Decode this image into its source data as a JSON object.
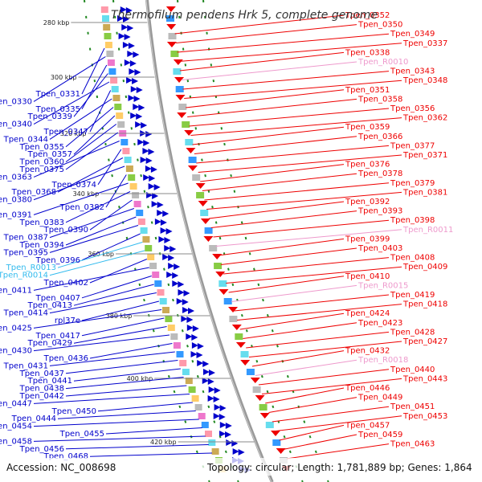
{
  "title": "Thermofilum pendens Hrk 5, complete genome",
  "accession": "Accession: NC_008698",
  "summary": "Topology: circular; Length: 1,781,889 bp; Genes: 1,864",
  "colors": {
    "forward": "#0000cc",
    "reverse": "#ee0000",
    "rna_forward": "#33bbee",
    "rna_reverse": "#ee99cc",
    "backbone": "#999999",
    "tick": "#228822"
  },
  "kbp_ticks": [
    "280 kbp",
    "300 kbp",
    "320 kbp",
    "340 kbp",
    "360 kbp",
    "380 kbp",
    "400 kbp",
    "420 kbp"
  ],
  "left_labels": [
    {
      "text": "Tpen_0331",
      "type": "cds"
    },
    {
      "text": "Tpen_0330",
      "type": "cds"
    },
    {
      "text": "Tpen_0335",
      "type": "cds"
    },
    {
      "text": "Tpen_0339",
      "type": "cds"
    },
    {
      "text": "Tpen_0340",
      "type": "cds"
    },
    {
      "text": "Tpen_0347",
      "type": "cds"
    },
    {
      "text": "Tpen_0344",
      "type": "cds"
    },
    {
      "text": "Tpen_0355",
      "type": "cds"
    },
    {
      "text": "Tpen_0357",
      "type": "cds"
    },
    {
      "text": "Tpen_0360",
      "type": "cds"
    },
    {
      "text": "Tpen_0375",
      "type": "cds"
    },
    {
      "text": "Tpen_0363",
      "type": "cds"
    },
    {
      "text": "Tpen_0374",
      "type": "cds"
    },
    {
      "text": "Tpen_0368",
      "type": "cds"
    },
    {
      "text": "Tpen_0380",
      "type": "cds"
    },
    {
      "text": "Tpen_0382",
      "type": "cds"
    },
    {
      "text": "Tpen_0391",
      "type": "cds"
    },
    {
      "text": "Tpen_0383",
      "type": "cds"
    },
    {
      "text": "Tpen_0390",
      "type": "cds"
    },
    {
      "text": "Tpen_0387",
      "type": "cds"
    },
    {
      "text": "Tpen_0394",
      "type": "cds"
    },
    {
      "text": "Tpen_0395",
      "type": "cds"
    },
    {
      "text": "Tpen_0396",
      "type": "cds"
    },
    {
      "text": "Tpen_R0013",
      "type": "rna"
    },
    {
      "text": "Tpen_R0014",
      "type": "rna"
    },
    {
      "text": "Tpen_0402",
      "type": "cds"
    },
    {
      "text": "Tpen_0411",
      "type": "cds"
    },
    {
      "text": "Tpen_0407",
      "type": "cds"
    },
    {
      "text": "Tpen_0413",
      "type": "cds"
    },
    {
      "text": "Tpen_0414",
      "type": "cds"
    },
    {
      "text": "rpl37e",
      "type": "cds"
    },
    {
      "text": "Tpen_0425",
      "type": "cds"
    },
    {
      "text": "Tpen_0417",
      "type": "cds"
    },
    {
      "text": "Tpen_0429",
      "type": "cds"
    },
    {
      "text": "Tpen_0430",
      "type": "cds"
    },
    {
      "text": "Tpen_0436",
      "type": "cds"
    },
    {
      "text": "Tpen_0431",
      "type": "cds"
    },
    {
      "text": "Tpen_0437",
      "type": "cds"
    },
    {
      "text": "Tpen_0441",
      "type": "cds"
    },
    {
      "text": "Tpen_0438",
      "type": "cds"
    },
    {
      "text": "Tpen_0442",
      "type": "cds"
    },
    {
      "text": "Tpen_0447",
      "type": "cds"
    },
    {
      "text": "Tpen_0450",
      "type": "cds"
    },
    {
      "text": "Tpen_0444",
      "type": "cds"
    },
    {
      "text": "Tpen_0454",
      "type": "cds"
    },
    {
      "text": "Tpen_0455",
      "type": "cds"
    },
    {
      "text": "Tpen_0458",
      "type": "cds"
    },
    {
      "text": "Tpen_0456",
      "type": "cds"
    },
    {
      "text": "Tpen_0468",
      "type": "cds"
    }
  ],
  "right_labels": [
    {
      "text": "Tpen_0352",
      "type": "cds"
    },
    {
      "text": "Tpen_0350",
      "type": "cds"
    },
    {
      "text": "Tpen_0349",
      "type": "cds"
    },
    {
      "text": "Tpen_0337",
      "type": "cds"
    },
    {
      "text": "Tpen_0338",
      "type": "cds"
    },
    {
      "text": "Tpen_R0010",
      "type": "rna"
    },
    {
      "text": "Tpen_0343",
      "type": "cds"
    },
    {
      "text": "Tpen_0348",
      "type": "cds"
    },
    {
      "text": "Tpen_0351",
      "type": "cds"
    },
    {
      "text": "Tpen_0358",
      "type": "cds"
    },
    {
      "text": "Tpen_0356",
      "type": "cds"
    },
    {
      "text": "Tpen_0362",
      "type": "cds"
    },
    {
      "text": "Tpen_0359",
      "type": "cds"
    },
    {
      "text": "Tpen_0366",
      "type": "cds"
    },
    {
      "text": "Tpen_0377",
      "type": "cds"
    },
    {
      "text": "Tpen_0371",
      "type": "cds"
    },
    {
      "text": "Tpen_0376",
      "type": "cds"
    },
    {
      "text": "Tpen_0378",
      "type": "cds"
    },
    {
      "text": "Tpen_0379",
      "type": "cds"
    },
    {
      "text": "Tpen_0381",
      "type": "cds"
    },
    {
      "text": "Tpen_0392",
      "type": "cds"
    },
    {
      "text": "Tpen_0393",
      "type": "cds"
    },
    {
      "text": "Tpen_0398",
      "type": "cds"
    },
    {
      "text": "Tpen_R0011",
      "type": "rna"
    },
    {
      "text": "Tpen_0399",
      "type": "cds"
    },
    {
      "text": "Tpen_0403",
      "type": "cds"
    },
    {
      "text": "Tpen_0408",
      "type": "cds"
    },
    {
      "text": "Tpen_0409",
      "type": "cds"
    },
    {
      "text": "Tpen_0410",
      "type": "cds"
    },
    {
      "text": "Tpen_R0015",
      "type": "rna"
    },
    {
      "text": "Tpen_0419",
      "type": "cds"
    },
    {
      "text": "Tpen_0418",
      "type": "cds"
    },
    {
      "text": "Tpen_0424",
      "type": "cds"
    },
    {
      "text": "Tpen_0423",
      "type": "cds"
    },
    {
      "text": "Tpen_0428",
      "type": "cds"
    },
    {
      "text": "Tpen_0427",
      "type": "cds"
    },
    {
      "text": "Tpen_0432",
      "type": "cds"
    },
    {
      "text": "Tpen_R0018",
      "type": "rna"
    },
    {
      "text": "Tpen_0440",
      "type": "cds"
    },
    {
      "text": "Tpen_0443",
      "type": "cds"
    },
    {
      "text": "Tpen_0446",
      "type": "cds"
    },
    {
      "text": "Tpen_0449",
      "type": "cds"
    },
    {
      "text": "Tpen_0451",
      "type": "cds"
    },
    {
      "text": "Tpen_0453",
      "type": "cds"
    },
    {
      "text": "Tpen_0457",
      "type": "cds"
    },
    {
      "text": "Tpen_0459",
      "type": "cds"
    },
    {
      "text": "Tpen_0463",
      "type": "cds"
    }
  ]
}
